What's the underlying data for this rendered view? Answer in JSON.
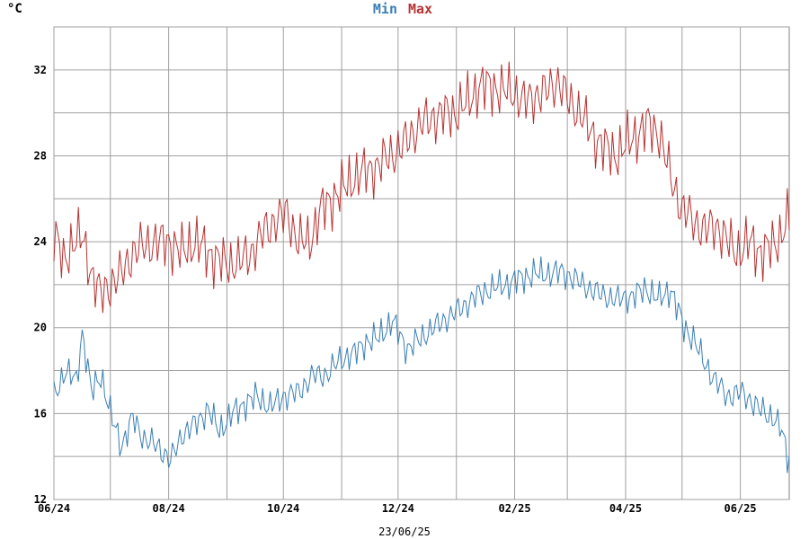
{
  "chart_data": {
    "type": "line",
    "unit_label": "°C",
    "footer_date": "23/06/25",
    "colors": {
      "min": "#3a7fb5",
      "max": "#b83232",
      "grid": "#a0a0a0",
      "frame": "#808080"
    },
    "ylim": [
      12,
      34
    ],
    "yticks": [
      12,
      16,
      20,
      24,
      28,
      32
    ],
    "xlim": [
      0,
      391
    ],
    "xticks": [
      {
        "x": 0,
        "label": "06/24"
      },
      {
        "x": 61,
        "label": "08/24"
      },
      {
        "x": 122,
        "label": "10/24"
      },
      {
        "x": 183,
        "label": "12/24"
      },
      {
        "x": 245,
        "label": "02/25"
      },
      {
        "x": 304,
        "label": "04/25"
      },
      {
        "x": 365,
        "label": "06/25"
      }
    ],
    "grid": true,
    "legend": "top-center",
    "series": [
      {
        "name": "Min",
        "key": "min",
        "anchors": [
          [
            0,
            16.8
          ],
          [
            6,
            18.0
          ],
          [
            12,
            17.5
          ],
          [
            15,
            19.8
          ],
          [
            20,
            17.0
          ],
          [
            25,
            17.8
          ],
          [
            30,
            16.0
          ],
          [
            36,
            14.5
          ],
          [
            42,
            15.8
          ],
          [
            48,
            14.8
          ],
          [
            55,
            14.5
          ],
          [
            62,
            13.8
          ],
          [
            68,
            15.0
          ],
          [
            75,
            15.5
          ],
          [
            82,
            16.2
          ],
          [
            88,
            15.2
          ],
          [
            95,
            16.0
          ],
          [
            102,
            16.5
          ],
          [
            108,
            16.8
          ],
          [
            115,
            16.3
          ],
          [
            122,
            16.8
          ],
          [
            130,
            17.0
          ],
          [
            138,
            17.8
          ],
          [
            145,
            17.8
          ],
          [
            152,
            18.5
          ],
          [
            160,
            18.8
          ],
          [
            165,
            19.3
          ],
          [
            172,
            19.5
          ],
          [
            180,
            20.3
          ],
          [
            188,
            19.0
          ],
          [
            195,
            19.5
          ],
          [
            202,
            20.0
          ],
          [
            210,
            20.5
          ],
          [
            218,
            21.0
          ],
          [
            225,
            21.5
          ],
          [
            232,
            21.8
          ],
          [
            240,
            22.0
          ],
          [
            248,
            22.3
          ],
          [
            255,
            22.5
          ],
          [
            262,
            22.5
          ],
          [
            270,
            22.6
          ],
          [
            278,
            22.2
          ],
          [
            285,
            21.8
          ],
          [
            292,
            21.5
          ],
          [
            300,
            21.3
          ],
          [
            308,
            21.5
          ],
          [
            315,
            21.8
          ],
          [
            322,
            21.3
          ],
          [
            328,
            21.8
          ],
          [
            335,
            20.0
          ],
          [
            340,
            19.5
          ],
          [
            345,
            18.5
          ],
          [
            352,
            17.5
          ],
          [
            358,
            16.8
          ],
          [
            365,
            17.0
          ],
          [
            372,
            16.5
          ],
          [
            378,
            16.0
          ],
          [
            383,
            15.8
          ],
          [
            387,
            15.2
          ],
          [
            390,
            14.0
          ]
        ]
      },
      {
        "name": "Max",
        "key": "max",
        "anchors": [
          [
            0,
            24.5
          ],
          [
            5,
            23.0
          ],
          [
            10,
            24.0
          ],
          [
            15,
            24.2
          ],
          [
            20,
            22.5
          ],
          [
            25,
            21.5
          ],
          [
            30,
            22.0
          ],
          [
            36,
            22.5
          ],
          [
            42,
            23.5
          ],
          [
            48,
            23.8
          ],
          [
            55,
            24.0
          ],
          [
            61,
            24.0
          ],
          [
            68,
            23.5
          ],
          [
            75,
            24.0
          ],
          [
            82,
            23.5
          ],
          [
            90,
            23.0
          ],
          [
            98,
            23.0
          ],
          [
            105,
            23.5
          ],
          [
            112,
            24.5
          ],
          [
            118,
            25.0
          ],
          [
            124,
            25.3
          ],
          [
            130,
            24.0
          ],
          [
            136,
            24.0
          ],
          [
            142,
            25.5
          ],
          [
            148,
            26.0
          ],
          [
            154,
            26.5
          ],
          [
            160,
            27.0
          ],
          [
            166,
            27.3
          ],
          [
            172,
            27.5
          ],
          [
            178,
            28.0
          ],
          [
            184,
            28.3
          ],
          [
            190,
            29.0
          ],
          [
            196,
            29.5
          ],
          [
            202,
            29.8
          ],
          [
            208,
            30.0
          ],
          [
            214,
            30.0
          ],
          [
            220,
            30.5
          ],
          [
            226,
            31.2
          ],
          [
            232,
            31.3
          ],
          [
            238,
            31.0
          ],
          [
            244,
            31.0
          ],
          [
            250,
            30.5
          ],
          [
            256,
            30.8
          ],
          [
            262,
            31.0
          ],
          [
            268,
            31.5
          ],
          [
            274,
            30.5
          ],
          [
            280,
            30.0
          ],
          [
            286,
            29.0
          ],
          [
            292,
            28.5
          ],
          [
            298,
            28.0
          ],
          [
            304,
            28.5
          ],
          [
            310,
            29.0
          ],
          [
            316,
            29.5
          ],
          [
            322,
            29.0
          ],
          [
            328,
            27.0
          ],
          [
            334,
            25.5
          ],
          [
            340,
            25.0
          ],
          [
            346,
            24.5
          ],
          [
            352,
            24.8
          ],
          [
            358,
            24.0
          ],
          [
            364,
            23.5
          ],
          [
            370,
            24.0
          ],
          [
            376,
            23.5
          ],
          [
            382,
            23.8
          ],
          [
            386,
            24.2
          ],
          [
            390,
            25.0
          ]
        ]
      }
    ]
  }
}
